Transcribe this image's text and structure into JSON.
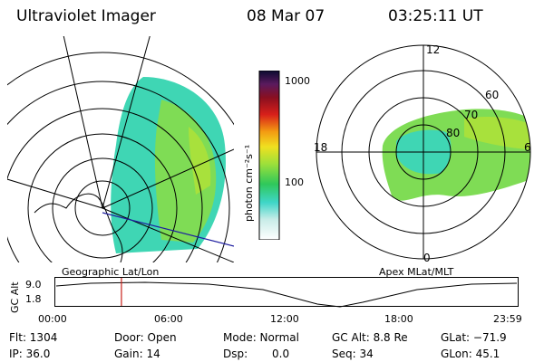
{
  "header": {
    "instrument": "Ultraviolet Imager",
    "date": "08 Mar 07",
    "time": "03:25:11 UT"
  },
  "colorbar": {
    "unit_label": "photon cm⁻²s⁻¹",
    "ticks": [
      "1000",
      "100"
    ]
  },
  "geo_panel": {
    "caption": "Geographic Lat/Lon"
  },
  "apex_panel": {
    "caption": "Apex  MLat/MLT",
    "mlt_labels": {
      "top": "12",
      "left": "18",
      "right": "6",
      "bottom": "0"
    },
    "lat_labels": [
      "60",
      "70",
      "80"
    ]
  },
  "altitude_plot": {
    "ylabel": "GC Alt",
    "yticks": [
      "9.0",
      "1.8"
    ],
    "xticks": [
      "00:00",
      "06:00",
      "12:00",
      "18:00",
      "23:59"
    ],
    "current_time_fraction": 0.143
  },
  "info": {
    "flt": "Flt: 1304",
    "ip": "IP: 36.0",
    "door": "Door: Open",
    "gain": "Gain: 14",
    "mode": "Mode: Normal",
    "dsp_label": "Dsp:",
    "dsp_value": "0.0",
    "gc_alt": "GC Alt: 8.8 Re",
    "seq": "Seq: 34",
    "glat": "GLat: −71.9",
    "glon": "GLon:  45.1"
  }
}
